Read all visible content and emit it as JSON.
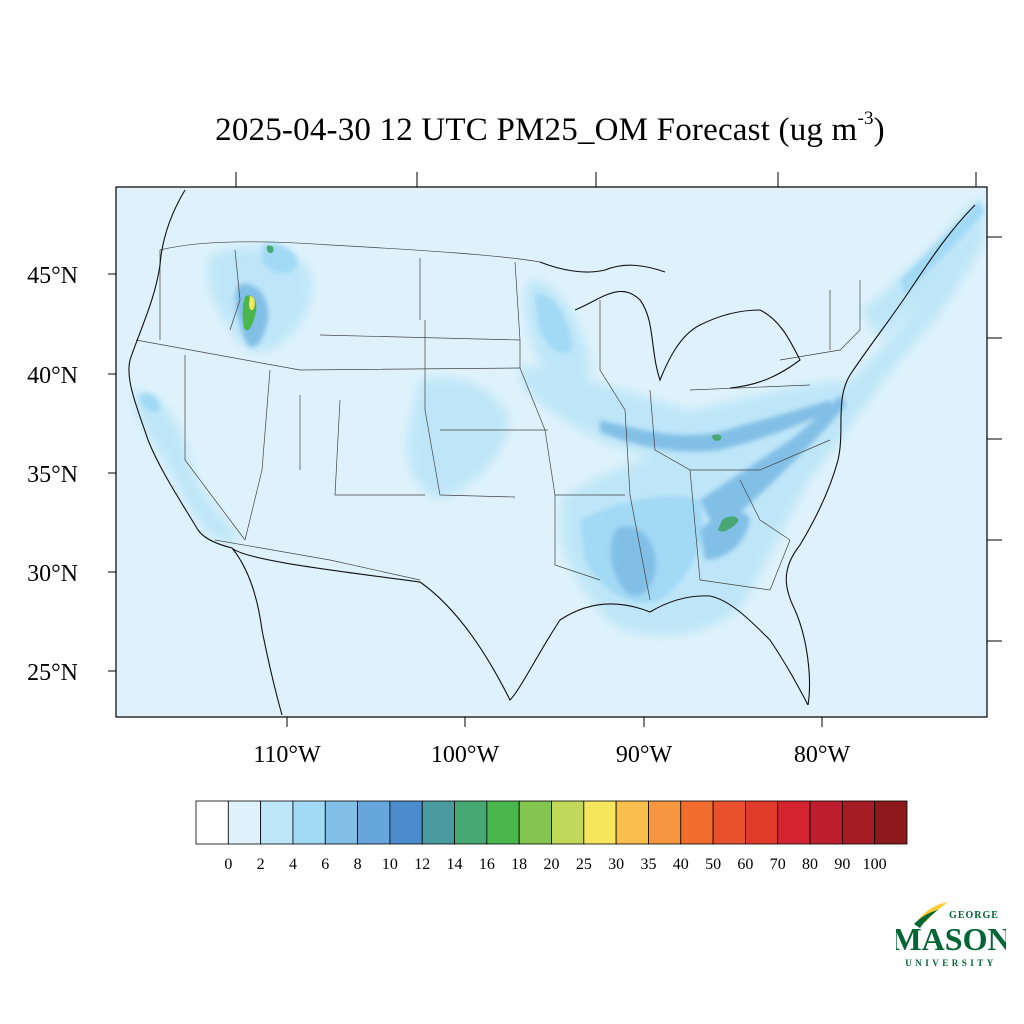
{
  "title": {
    "main": "2025-04-30 12 UTC PM25_OM Forecast (ug m",
    "sup": "-3",
    "close": ")"
  },
  "axes": {
    "lat_labels": [
      "45°N",
      "40°N",
      "35°N",
      "30°N",
      "25°N"
    ],
    "lon_labels": [
      "110°W",
      "100°W",
      "90°W",
      "80°W"
    ]
  },
  "colorbar": {
    "ticks": [
      "0",
      "2",
      "4",
      "6",
      "8",
      "10",
      "12",
      "14",
      "16",
      "18",
      "20",
      "25",
      "30",
      "35",
      "40",
      "50",
      "60",
      "70",
      "80",
      "90",
      "100"
    ],
    "colors": [
      "#ffffff",
      "#dff2fb",
      "#bde6f8",
      "#a2d9f5",
      "#82bfe6",
      "#66a6da",
      "#4c8ccc",
      "#4a9b9f",
      "#47a873",
      "#49b74b",
      "#84c54f",
      "#c2d85a",
      "#f7e65d",
      "#f8bf4d",
      "#f6973f",
      "#f16d2d",
      "#e9502d",
      "#e03b2b",
      "#d42430",
      "#be1e2d",
      "#a51c24",
      "#8c1a1d"
    ],
    "base_fill": "#dff2fb"
  },
  "logo": {
    "line1": "GEORGE",
    "line2": "MASON",
    "line3": "UNIVERSITY",
    "green": "#006633",
    "gold": "#ffcc33"
  }
}
